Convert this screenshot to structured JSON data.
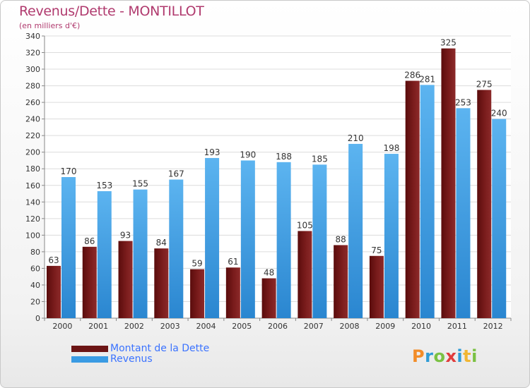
{
  "header": {
    "title": "Revenus/Dette - MONTILLOT",
    "subtitle": "(en milliers d'€)"
  },
  "legend": {
    "items": [
      {
        "label": "Montant de la Dette",
        "color": "#6b1414"
      },
      {
        "label": "Revenus",
        "color": "#3a9be3"
      }
    ]
  },
  "logo": {
    "text": "Proxiti",
    "letters": [
      {
        "ch": "P",
        "color": "#f28c28"
      },
      {
        "ch": "r",
        "color": "#2e9bd6"
      },
      {
        "ch": "o",
        "color": "#7ac143"
      },
      {
        "ch": "x",
        "color": "#e03c3c"
      },
      {
        "ch": "i",
        "color": "#2e9bd6"
      },
      {
        "ch": "t",
        "color": "#f2b632"
      },
      {
        "ch": "i",
        "color": "#7ac143"
      }
    ]
  },
  "chart_data": {
    "type": "bar",
    "title": "Revenus/Dette - MONTILLOT",
    "subtitle": "(en milliers d'€)",
    "categories": [
      "2000",
      "2001",
      "2002",
      "2003",
      "2004",
      "2005",
      "2006",
      "2007",
      "2008",
      "2009",
      "2010",
      "2011",
      "2012"
    ],
    "series": [
      {
        "name": "Montant de la Dette",
        "color": "#6b1414",
        "values": [
          63,
          86,
          93,
          84,
          59,
          61,
          48,
          105,
          88,
          75,
          286,
          325,
          275
        ]
      },
      {
        "name": "Revenus",
        "color": "#3a9be3",
        "values": [
          170,
          153,
          155,
          167,
          193,
          190,
          188,
          185,
          210,
          198,
          281,
          253,
          240
        ]
      }
    ],
    "ylim": [
      0,
      340
    ],
    "ystep": 20,
    "grid": true,
    "legend_position": "bottom-left"
  }
}
